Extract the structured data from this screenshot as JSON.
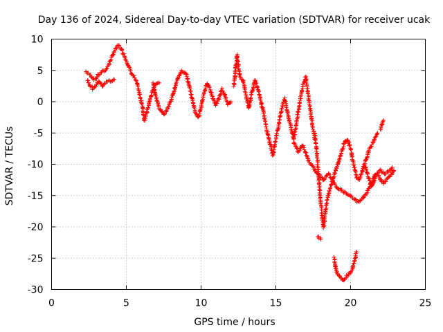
{
  "chart_data": {
    "type": "scatter",
    "title": "Day 136 of 2024, Sidereal Day-to-day VTEC variation (SDTVAR) for receiver ucak",
    "xlabel": "GPS time / hours",
    "ylabel": "SDTVAR / TECUs",
    "xlim": [
      0,
      25
    ],
    "ylim": [
      -30,
      10
    ],
    "xticks": [
      0,
      5,
      10,
      15,
      20,
      25
    ],
    "yticks": [
      -30,
      -25,
      -20,
      -15,
      -10,
      -5,
      0,
      5,
      10
    ],
    "grid": true,
    "marker": "+",
    "color": "#ff0000",
    "series": [
      {
        "name": "ucak",
        "segments": [
          [
            [
              2.3,
              4.8
            ],
            [
              2.6,
              4.2
            ],
            [
              2.9,
              3.5
            ],
            [
              3.1,
              4.2
            ],
            [
              3.4,
              4.8
            ],
            [
              3.6,
              5.0
            ],
            [
              3.8,
              5.8
            ],
            [
              4.0,
              7.0
            ],
            [
              4.3,
              8.5
            ],
            [
              4.5,
              9.0
            ],
            [
              4.7,
              8.2
            ],
            [
              4.9,
              7.2
            ],
            [
              5.1,
              6.0
            ],
            [
              5.3,
              4.8
            ],
            [
              5.5,
              4.0
            ],
            [
              5.7,
              3.0
            ],
            [
              5.9,
              1.0
            ],
            [
              6.1,
              -1.0
            ],
            [
              6.2,
              -3.0
            ],
            [
              6.4,
              -1.5
            ],
            [
              6.6,
              0.5
            ],
            [
              6.8,
              2.0
            ],
            [
              7.0,
              3.0
            ],
            [
              7.2,
              3.0
            ]
          ],
          [
            [
              2.4,
              3.5
            ],
            [
              2.6,
              2.5
            ],
            [
              2.8,
              2.0
            ],
            [
              3.0,
              2.8
            ],
            [
              3.2,
              3.3
            ],
            [
              3.4,
              2.5
            ],
            [
              3.6,
              3.0
            ],
            [
              3.8,
              3.3
            ],
            [
              4.0,
              3.3
            ],
            [
              4.2,
              3.5
            ]
          ],
          [
            [
              6.8,
              3.0
            ],
            [
              7.0,
              0.5
            ],
            [
              7.2,
              -1.0
            ],
            [
              7.5,
              -2.0
            ],
            [
              7.8,
              -1.0
            ],
            [
              8.1,
              1.0
            ],
            [
              8.4,
              3.5
            ],
            [
              8.7,
              5.0
            ],
            [
              9.0,
              4.5
            ],
            [
              9.2,
              2.5
            ],
            [
              9.4,
              0.5
            ],
            [
              9.6,
              -1.5
            ],
            [
              9.8,
              -2.5
            ],
            [
              10.0,
              -1.0
            ],
            [
              10.2,
              1.5
            ],
            [
              10.4,
              3.0
            ],
            [
              10.6,
              2.0
            ],
            [
              10.8,
              0.5
            ],
            [
              11.0,
              -0.5
            ],
            [
              11.2,
              0.5
            ],
            [
              11.4,
              2.0
            ],
            [
              11.6,
              1.0
            ],
            [
              11.8,
              -0.5
            ],
            [
              12.0,
              0.0
            ]
          ],
          [
            [
              12.2,
              2.5
            ],
            [
              12.3,
              5.0
            ],
            [
              12.4,
              7.5
            ],
            [
              12.5,
              5.5
            ],
            [
              12.6,
              4.0
            ],
            [
              12.8,
              3.5
            ],
            [
              13.0,
              1.0
            ],
            [
              13.2,
              -1.0
            ],
            [
              13.4,
              1.5
            ],
            [
              13.6,
              3.5
            ],
            [
              13.8,
              2.0
            ],
            [
              14.0,
              0.0
            ],
            [
              14.2,
              -2.0
            ],
            [
              14.4,
              -4.5
            ],
            [
              14.6,
              -6.5
            ],
            [
              14.8,
              -8.5
            ],
            [
              15.0,
              -6.0
            ],
            [
              15.2,
              -3.5
            ],
            [
              15.4,
              -1.0
            ],
            [
              15.6,
              0.5
            ],
            [
              15.8,
              -2.0
            ],
            [
              16.0,
              -4.0
            ],
            [
              16.2,
              -6.0
            ],
            [
              16.4,
              -3.0
            ],
            [
              16.6,
              0.0
            ],
            [
              16.8,
              2.5
            ],
            [
              17.0,
              4.0
            ],
            [
              17.2,
              0.5
            ],
            [
              17.4,
              -3.0
            ],
            [
              17.6,
              -6.0
            ]
          ],
          [
            [
              17.6,
              -5.0
            ],
            [
              17.7,
              -7.0
            ],
            [
              17.8,
              -10.0
            ],
            [
              17.9,
              -13.0
            ],
            [
              18.0,
              -16.0
            ],
            [
              18.1,
              -18.5
            ],
            [
              18.2,
              -20.0
            ],
            [
              18.3,
              -18.0
            ],
            [
              18.4,
              -16.0
            ],
            [
              18.6,
              -14.0
            ],
            [
              18.8,
              -12.5
            ],
            [
              19.0,
              -11.0
            ],
            [
              19.2,
              -9.5
            ],
            [
              19.4,
              -8.0
            ],
            [
              19.6,
              -6.5
            ],
            [
              19.8,
              -6.0
            ],
            [
              20.0,
              -7.5
            ],
            [
              20.2,
              -10.0
            ],
            [
              20.4,
              -12.0
            ],
            [
              20.6,
              -12.5
            ],
            [
              20.8,
              -11.0
            ],
            [
              21.0,
              -9.5
            ],
            [
              21.2,
              -8.0
            ],
            [
              21.4,
              -7.0
            ],
            [
              21.6,
              -6.0
            ],
            [
              21.8,
              -5.0
            ]
          ],
          [
            [
              16.2,
              -6.5
            ],
            [
              16.5,
              -8.0
            ],
            [
              16.8,
              -7.0
            ],
            [
              17.2,
              -9.5
            ],
            [
              17.5,
              -10.5
            ],
            [
              17.8,
              -11.5
            ],
            [
              18.2,
              -12.5
            ],
            [
              18.5,
              -11.5
            ],
            [
              18.8,
              -12.5
            ],
            [
              19.0,
              -13.5
            ],
            [
              19.3,
              -14.0
            ],
            [
              19.6,
              -14.5
            ],
            [
              19.9,
              -15.0
            ],
            [
              20.2,
              -15.5
            ],
            [
              20.5,
              -16.0
            ],
            [
              20.8,
              -15.5
            ],
            [
              21.1,
              -14.5
            ],
            [
              21.4,
              -13.0
            ],
            [
              21.7,
              -11.5
            ],
            [
              22.0,
              -11.0
            ],
            [
              22.3,
              -11.5
            ],
            [
              22.6,
              -11.0
            ],
            [
              22.8,
              -10.5
            ]
          ],
          [
            [
              17.8,
              -21.5
            ],
            [
              18.0,
              -22.0
            ]
          ],
          [
            [
              18.9,
              -25.0
            ],
            [
              19.0,
              -26.5
            ],
            [
              19.1,
              -27.5
            ],
            [
              19.3,
              -28.0
            ],
            [
              19.5,
              -28.5
            ],
            [
              19.7,
              -28.0
            ],
            [
              19.9,
              -27.5
            ],
            [
              20.1,
              -27.0
            ],
            [
              20.2,
              -26.0
            ],
            [
              20.3,
              -25.0
            ],
            [
              20.4,
              -24.0
            ]
          ],
          [
            [
              21.0,
              -10.5
            ],
            [
              21.2,
              -12.0
            ],
            [
              21.4,
              -13.5
            ],
            [
              21.6,
              -12.5
            ],
            [
              21.8,
              -11.5
            ],
            [
              22.0,
              -12.5
            ],
            [
              22.2,
              -13.0
            ],
            [
              22.4,
              -12.5
            ],
            [
              22.6,
              -12.0
            ],
            [
              22.8,
              -11.5
            ],
            [
              22.9,
              -11.0
            ]
          ],
          [
            [
              22.0,
              -4.5
            ],
            [
              22.1,
              -3.5
            ],
            [
              22.2,
              -3.0
            ]
          ]
        ]
      }
    ]
  }
}
